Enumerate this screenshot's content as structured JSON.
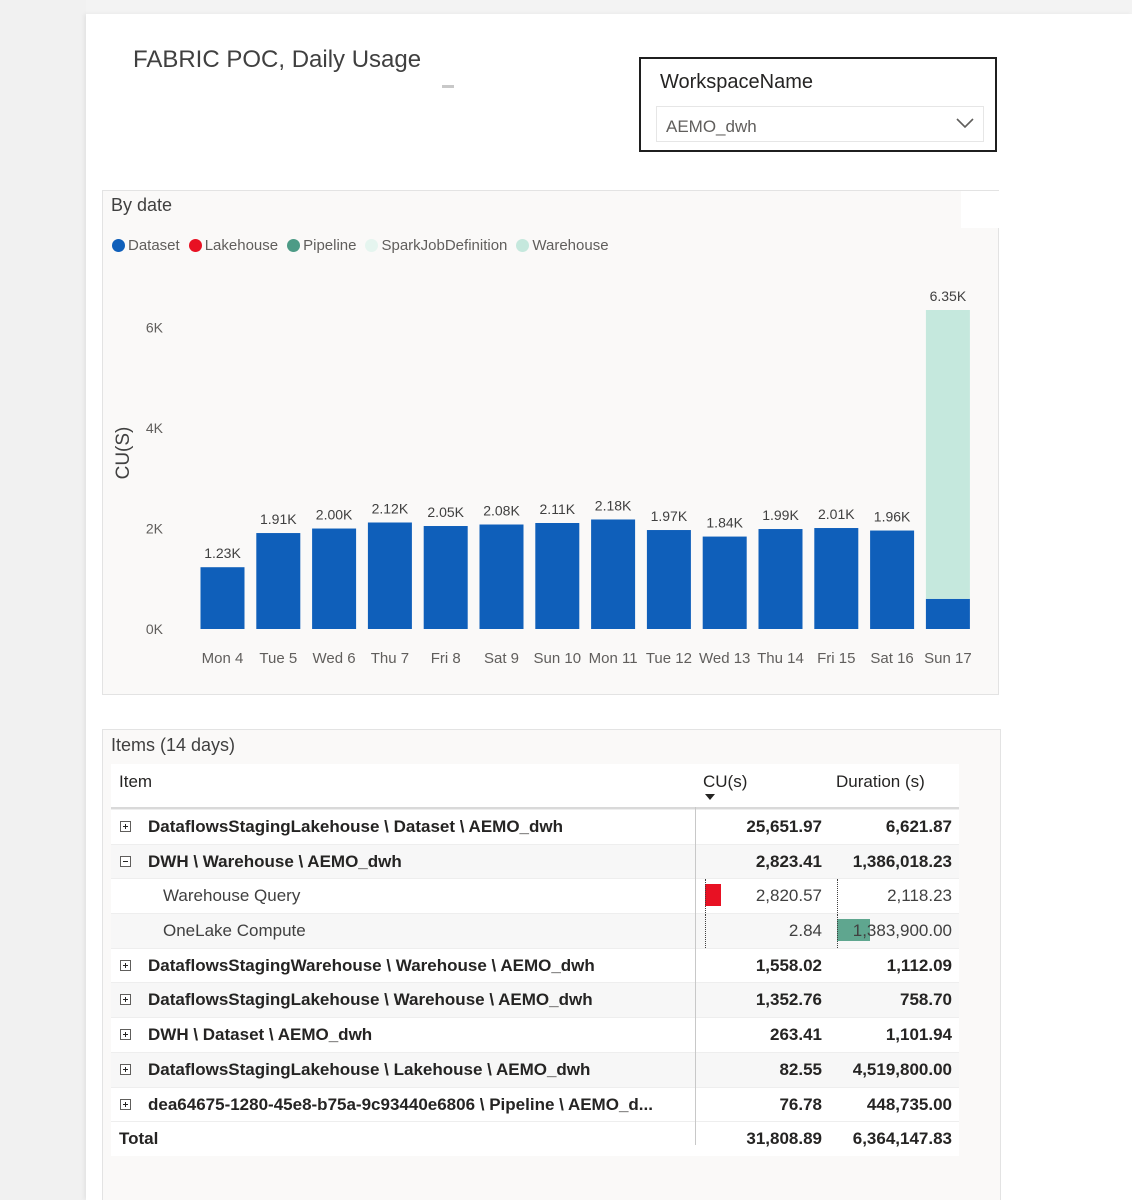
{
  "report": {
    "title": "FABRIC POC, Daily Usage"
  },
  "slicer": {
    "label": "WorkspaceName",
    "selected_value": "AEMO_dwh",
    "icon": "chevron-down-icon"
  },
  "chart": {
    "title": "By date",
    "legend": [
      {
        "name": "Dataset",
        "color": "#0f5fba"
      },
      {
        "name": "Lakehouse",
        "color": "#e81123"
      },
      {
        "name": "Pipeline",
        "color": "#4d9b86"
      },
      {
        "name": "SparkJobDefinition",
        "color": "#e5f5ef"
      },
      {
        "name": "Warehouse",
        "color": "#c5e8dd"
      }
    ]
  },
  "chart_data": {
    "type": "bar",
    "stacked": true,
    "title": "By date",
    "xlabel": "",
    "ylabel": "CU(S)",
    "ylim": [
      0,
      6350
    ],
    "yticks": [
      "0K",
      "2K",
      "4K",
      "6K"
    ],
    "ytick_values": [
      0,
      2000,
      4000,
      6000
    ],
    "grid": false,
    "legend_position": "top-left",
    "categories": [
      "Mon 4",
      "Tue 5",
      "Wed 6",
      "Thu 7",
      "Fri 8",
      "Sat 9",
      "Sun 10",
      "Mon 11",
      "Tue 12",
      "Wed 13",
      "Thu 14",
      "Fri 15",
      "Sat 16",
      "Sun 17"
    ],
    "series": [
      {
        "name": "Dataset",
        "color": "#0f5fba",
        "values": [
          1230,
          1910,
          2000,
          2120,
          2050,
          2080,
          2110,
          2180,
          1970,
          1840,
          1990,
          2010,
          1960,
          600
        ]
      },
      {
        "name": "Warehouse",
        "color": "#c5e8dd",
        "values": [
          0,
          0,
          0,
          0,
          0,
          0,
          0,
          0,
          0,
          0,
          0,
          0,
          0,
          5750
        ]
      }
    ],
    "data_labels": [
      "1.23K",
      "1.91K",
      "2.00K",
      "2.12K",
      "2.05K",
      "2.08K",
      "2.11K",
      "2.18K",
      "1.97K",
      "1.84K",
      "1.99K",
      "2.01K",
      "1.96K",
      "6.35K"
    ]
  },
  "table": {
    "title": "Items (14 days)",
    "headers": {
      "item": "Item",
      "cu": "CU(s)",
      "duration": "Duration (s)"
    },
    "rows": [
      {
        "item": "DataflowsStagingLakehouse \\ Dataset \\ AEMO_dwh",
        "cu": "25,651.97",
        "duration": "6,621.87",
        "expander": "plus"
      },
      {
        "item": "DWH \\ Warehouse \\ AEMO_dwh",
        "cu": "2,823.41",
        "duration": "1,386,018.23",
        "expander": "minus"
      },
      {
        "item": "Warehouse Query",
        "cu": "2,820.57",
        "duration": "2,118.23",
        "child": true
      },
      {
        "item": "OneLake Compute",
        "cu": "2.84",
        "duration": "1,383,900.00",
        "child": true
      },
      {
        "item": "DataflowsStagingWarehouse \\ Warehouse \\ AEMO_dwh",
        "cu": "1,558.02",
        "duration": "1,112.09",
        "expander": "plus"
      },
      {
        "item": "DataflowsStagingLakehouse \\ Warehouse \\ AEMO_dwh",
        "cu": "1,352.76",
        "duration": "758.70",
        "expander": "plus"
      },
      {
        "item": "DWH \\ Dataset \\ AEMO_dwh",
        "cu": "263.41",
        "duration": "1,101.94",
        "expander": "plus"
      },
      {
        "item": "DataflowsStagingLakehouse \\ Lakehouse \\ AEMO_dwh",
        "cu": "82.55",
        "duration": "4,519,800.00",
        "expander": "plus"
      },
      {
        "item": "dea64675-1280-45e8-b75a-9c93440e6806 \\ Pipeline \\ AEMO_d...",
        "cu": "76.78",
        "duration": "448,735.00",
        "expander": "plus"
      }
    ],
    "total": {
      "label": "Total",
      "cu": "31,808.89",
      "duration": "6,364,147.83"
    }
  }
}
